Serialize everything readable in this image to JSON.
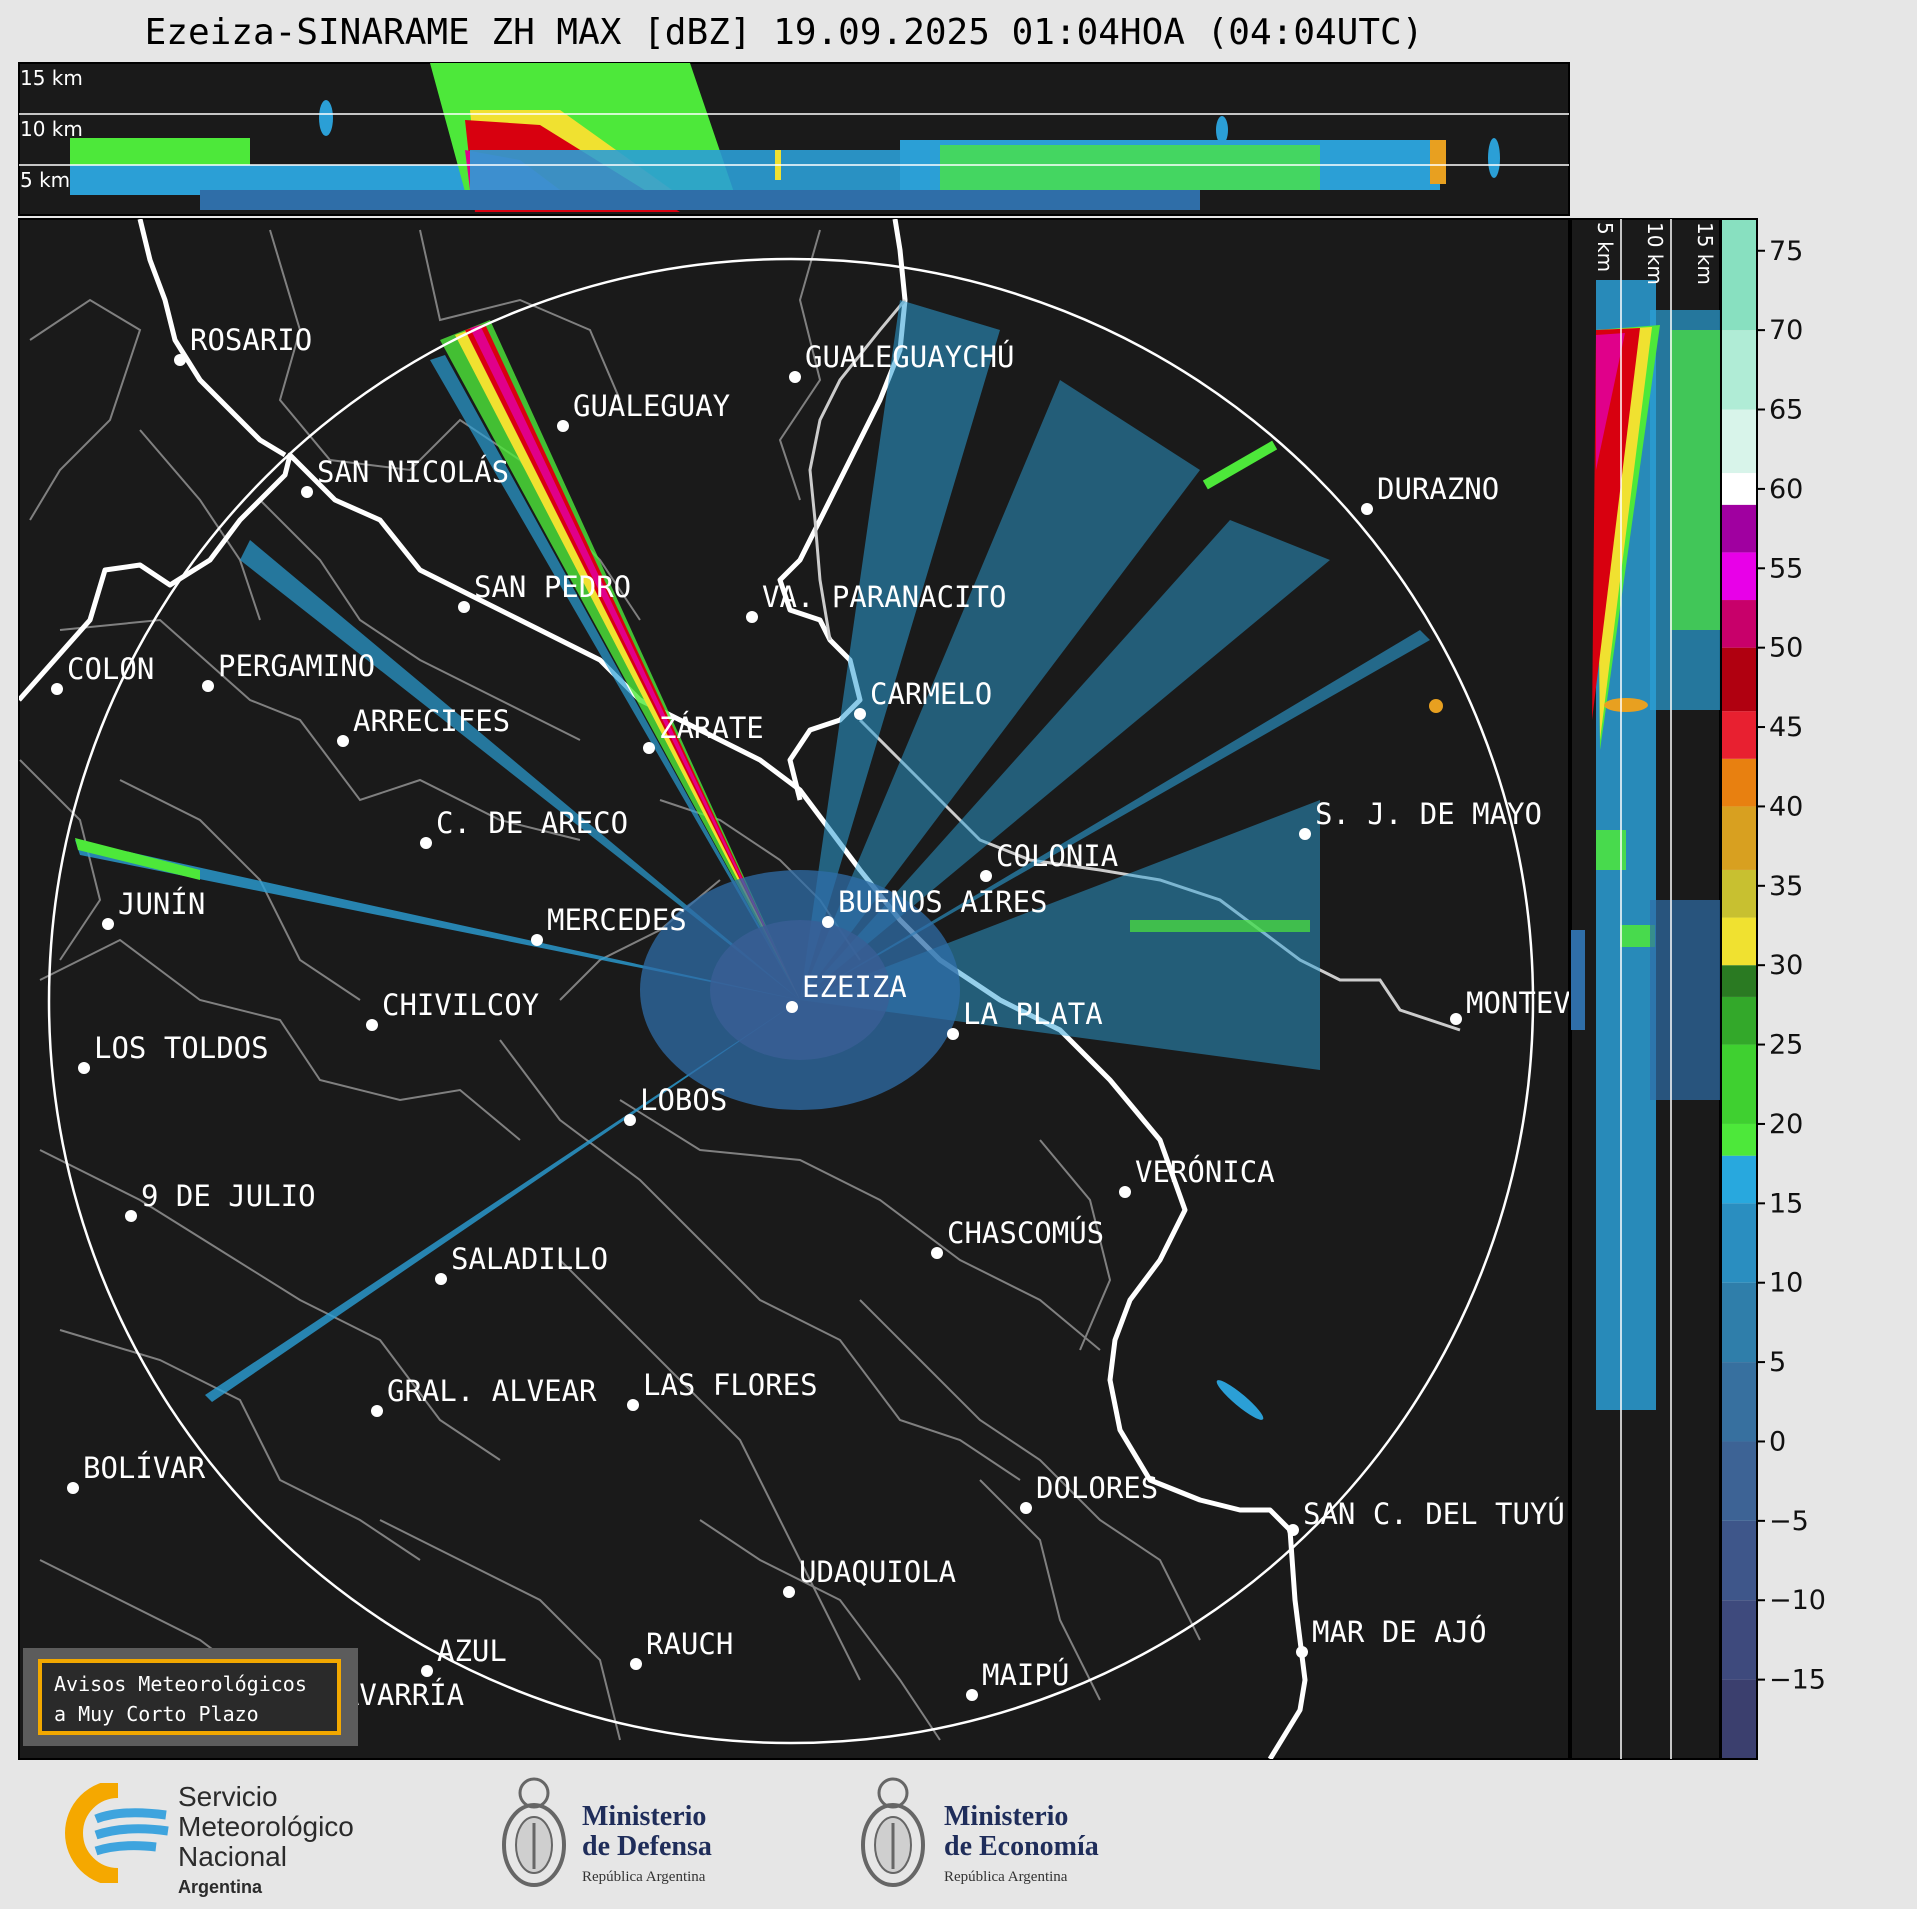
{
  "title": "Ezeiza-SINARAME ZH MAX [dBZ] 19.09.2025 01:04HOA (04:04UTC)",
  "top_profile": {
    "height_labels": [
      "15 km",
      "10 km",
      "5 km"
    ]
  },
  "side_profile": {
    "height_labels": [
      "5 km",
      "10 km",
      "15 km"
    ]
  },
  "colorbar": {
    "ticks": [
      "75",
      "70",
      "65",
      "60",
      "55",
      "50",
      "45",
      "40",
      "35",
      "30",
      "25",
      "20",
      "15",
      "10",
      "5",
      "0",
      "−5",
      "−10",
      "−15"
    ],
    "range": [
      -20,
      77
    ]
  },
  "cities": [
    {
      "name": "ROSARIO"
    },
    {
      "name": "GUALEGUAYCHÚ"
    },
    {
      "name": "GUALEGUAY"
    },
    {
      "name": "SAN NICOLÁS"
    },
    {
      "name": "DURAZNO"
    },
    {
      "name": "SAN PEDRO"
    },
    {
      "name": "VA. PARANACITO"
    },
    {
      "name": "COLON"
    },
    {
      "name": "PERGAMINO"
    },
    {
      "name": "CARMELO"
    },
    {
      "name": "ARRECIFES"
    },
    {
      "name": "ZÁRATE"
    },
    {
      "name": "C. DE ARECO"
    },
    {
      "name": "S. J. DE MAYO"
    },
    {
      "name": "COLONIA"
    },
    {
      "name": "JUNÍN"
    },
    {
      "name": "BUENOS AIRES"
    },
    {
      "name": "MERCEDES"
    },
    {
      "name": "EZEIZA"
    },
    {
      "name": "MONTEVIDEO"
    },
    {
      "name": "CHIVILCOY"
    },
    {
      "name": "LA PLATA"
    },
    {
      "name": "LOS TOLDOS"
    },
    {
      "name": "LOBOS"
    },
    {
      "name": "VERÓNICA"
    },
    {
      "name": "9 DE JULIO"
    },
    {
      "name": "CHASCOMÚS"
    },
    {
      "name": "SALADILLO"
    },
    {
      "name": "GRAL. ALVEAR"
    },
    {
      "name": "LAS FLORES"
    },
    {
      "name": "BOLÍVAR"
    },
    {
      "name": "DOLORES"
    },
    {
      "name": "SAN C. DEL TUYÚ"
    },
    {
      "name": "UDAQUIOLA"
    },
    {
      "name": "RAUCH"
    },
    {
      "name": "MAR DE AJÓ"
    },
    {
      "name": "AZUL"
    },
    {
      "name": "OLAVARRÍA"
    },
    {
      "name": "MAIPÚ"
    }
  ],
  "notice": {
    "line1": "Avisos Meteorológicos",
    "line2": "a Muy Corto Plazo"
  },
  "logos": {
    "smn": {
      "line1": "Servicio",
      "line2": "Meteorológico",
      "line3": "Nacional",
      "line4": "Argentina"
    },
    "defensa": {
      "line1": "Ministerio",
      "line2": "de Defensa",
      "line3": "República Argentina"
    },
    "economia": {
      "line1": "Ministerio",
      "line2": "de Economía",
      "line3": "República Argentina"
    }
  },
  "colors": {
    "panel_bg": "#1a1a1a",
    "page_bg": "#e6e6e6",
    "notice_border": "#f2a800"
  }
}
